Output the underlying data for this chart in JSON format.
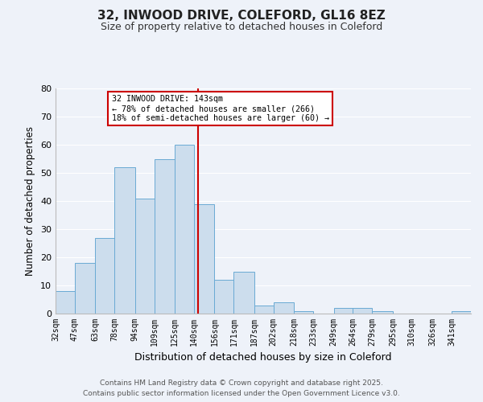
{
  "title": "32, INWOOD DRIVE, COLEFORD, GL16 8EZ",
  "subtitle": "Size of property relative to detached houses in Coleford",
  "xlabel": "Distribution of detached houses by size in Coleford",
  "ylabel": "Number of detached properties",
  "bin_edges": [
    32,
    47,
    63,
    78,
    94,
    109,
    125,
    140,
    156,
    171,
    187,
    202,
    218,
    233,
    249,
    264,
    279,
    295,
    310,
    326,
    341,
    356
  ],
  "bar_heights": [
    8,
    18,
    27,
    52,
    41,
    55,
    60,
    39,
    12,
    15,
    3,
    4,
    1,
    0,
    2,
    2,
    1,
    0,
    0,
    0,
    1
  ],
  "bar_color": "#ccdded",
  "bar_edgecolor": "#6aaad4",
  "vline_x": 143,
  "vline_color": "#cc0000",
  "annotation_title": "32 INWOOD DRIVE: 143sqm",
  "annotation_line1": "← 78% of detached houses are smaller (266)",
  "annotation_line2": "18% of semi-detached houses are larger (60) →",
  "annotation_box_edgecolor": "#cc0000",
  "annotation_box_facecolor": "#ffffff",
  "ylim": [
    0,
    80
  ],
  "yticks": [
    0,
    10,
    20,
    30,
    40,
    50,
    60,
    70,
    80
  ],
  "background_color": "#eef2f9",
  "grid_color": "#ffffff",
  "footnote1": "Contains HM Land Registry data © Crown copyright and database right 2025.",
  "footnote2": "Contains public sector information licensed under the Open Government Licence v3.0."
}
